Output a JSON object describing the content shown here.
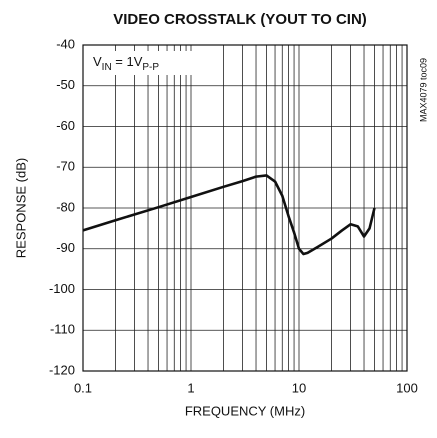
{
  "chart_data": {
    "type": "line",
    "title": "VIDEO CROSSTALK (YOUT TO CIN)",
    "xlabel": "FREQUENCY (MHz)",
    "ylabel": "RESPONSE (dB)",
    "annotation": [
      "V",
      "IN",
      " = 1V",
      "P-P"
    ],
    "side_note": "MAX4079 toc09",
    "x": [
      0.1,
      0.2,
      0.5,
      1,
      2,
      3,
      4,
      5,
      6,
      7,
      8,
      9,
      10,
      11,
      12,
      15,
      20,
      25,
      30,
      35,
      40,
      45,
      50
    ],
    "series": [
      {
        "name": "crosstalk",
        "color": "#111111",
        "values": [
          -85.5,
          -83,
          -79.8,
          -77.3,
          -74.8,
          -73.4,
          -72.3,
          -72,
          -73.5,
          -77,
          -82,
          -86,
          -90,
          -91.3,
          -91,
          -89.5,
          -87.5,
          -85.5,
          -84,
          -84.5,
          -87,
          -85,
          -80
        ]
      }
    ],
    "xlim": [
      0.1,
      100
    ],
    "xticks": [
      0.1,
      1,
      10,
      100
    ],
    "xscale": "log",
    "ylim": [
      -120,
      -40
    ],
    "yticks": [
      -120,
      -110,
      -100,
      -90,
      -80,
      -70,
      -60,
      -50,
      -40
    ],
    "grid": true
  }
}
